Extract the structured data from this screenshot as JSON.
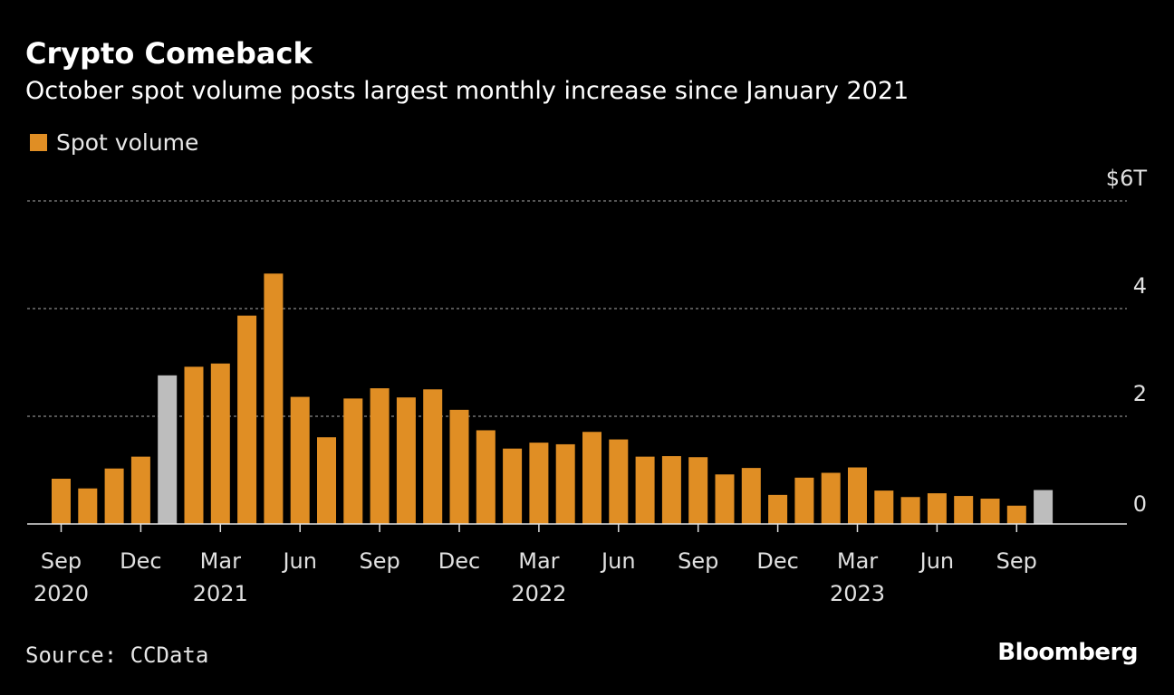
{
  "header": {
    "title": "Crypto Comeback",
    "subtitle": "October spot volume posts largest monthly increase since January 2021"
  },
  "footer": {
    "source": "Source: CCData",
    "brand": "Bloomberg"
  },
  "colors": {
    "bar": "#e08e24",
    "highlight": "#bdbdbd",
    "grid": "#8a8a8a",
    "axis": "#e0e0e0"
  },
  "chart_data": {
    "type": "bar",
    "legend": [
      {
        "name": "Spot volume",
        "color": "#e08e24"
      }
    ],
    "legend_placement": "top-left",
    "grid": true,
    "y_axis": {
      "position": "right",
      "ylim": [
        0,
        6
      ],
      "ticks": [
        0,
        2,
        4,
        6
      ],
      "tick_labels": [
        "0",
        "2",
        "4",
        "$6T"
      ]
    },
    "x_tick_labels": [
      {
        "index": 0,
        "month": "Sep",
        "year": "2020"
      },
      {
        "index": 3,
        "month": "Dec",
        "year": ""
      },
      {
        "index": 6,
        "month": "Mar",
        "year": "2021"
      },
      {
        "index": 9,
        "month": "Jun",
        "year": ""
      },
      {
        "index": 12,
        "month": "Sep",
        "year": ""
      },
      {
        "index": 15,
        "month": "Dec",
        "year": ""
      },
      {
        "index": 18,
        "month": "Mar",
        "year": "2022"
      },
      {
        "index": 21,
        "month": "Jun",
        "year": ""
      },
      {
        "index": 24,
        "month": "Sep",
        "year": ""
      },
      {
        "index": 27,
        "month": "Dec",
        "year": ""
      },
      {
        "index": 30,
        "month": "Mar",
        "year": "2023"
      },
      {
        "index": 33,
        "month": "Jun",
        "year": ""
      },
      {
        "index": 36,
        "month": "Sep",
        "year": ""
      }
    ],
    "categories": [
      "2020-09",
      "2020-10",
      "2020-11",
      "2020-12",
      "2021-01",
      "2021-02",
      "2021-03",
      "2021-04",
      "2021-05",
      "2021-06",
      "2021-07",
      "2021-08",
      "2021-09",
      "2021-10",
      "2021-11",
      "2021-12",
      "2022-01",
      "2022-02",
      "2022-03",
      "2022-04",
      "2022-05",
      "2022-06",
      "2022-07",
      "2022-08",
      "2022-09",
      "2022-10",
      "2022-11",
      "2022-12",
      "2023-01",
      "2023-02",
      "2023-03",
      "2023-04",
      "2023-05",
      "2023-06",
      "2023-07",
      "2023-08",
      "2023-09",
      "2023-10"
    ],
    "series": [
      {
        "name": "Spot volume",
        "values": [
          0.84,
          0.66,
          1.03,
          1.25,
          2.76,
          2.92,
          2.98,
          3.87,
          4.65,
          2.36,
          1.61,
          2.33,
          2.52,
          2.35,
          2.5,
          2.12,
          1.74,
          1.4,
          1.51,
          1.48,
          1.71,
          1.57,
          1.25,
          1.26,
          1.24,
          0.92,
          1.04,
          0.54,
          0.86,
          0.95,
          1.05,
          0.62,
          0.5,
          0.57,
          0.52,
          0.47,
          0.34,
          0.63
        ],
        "highlight_indices": [
          4,
          37
        ]
      }
    ]
  }
}
